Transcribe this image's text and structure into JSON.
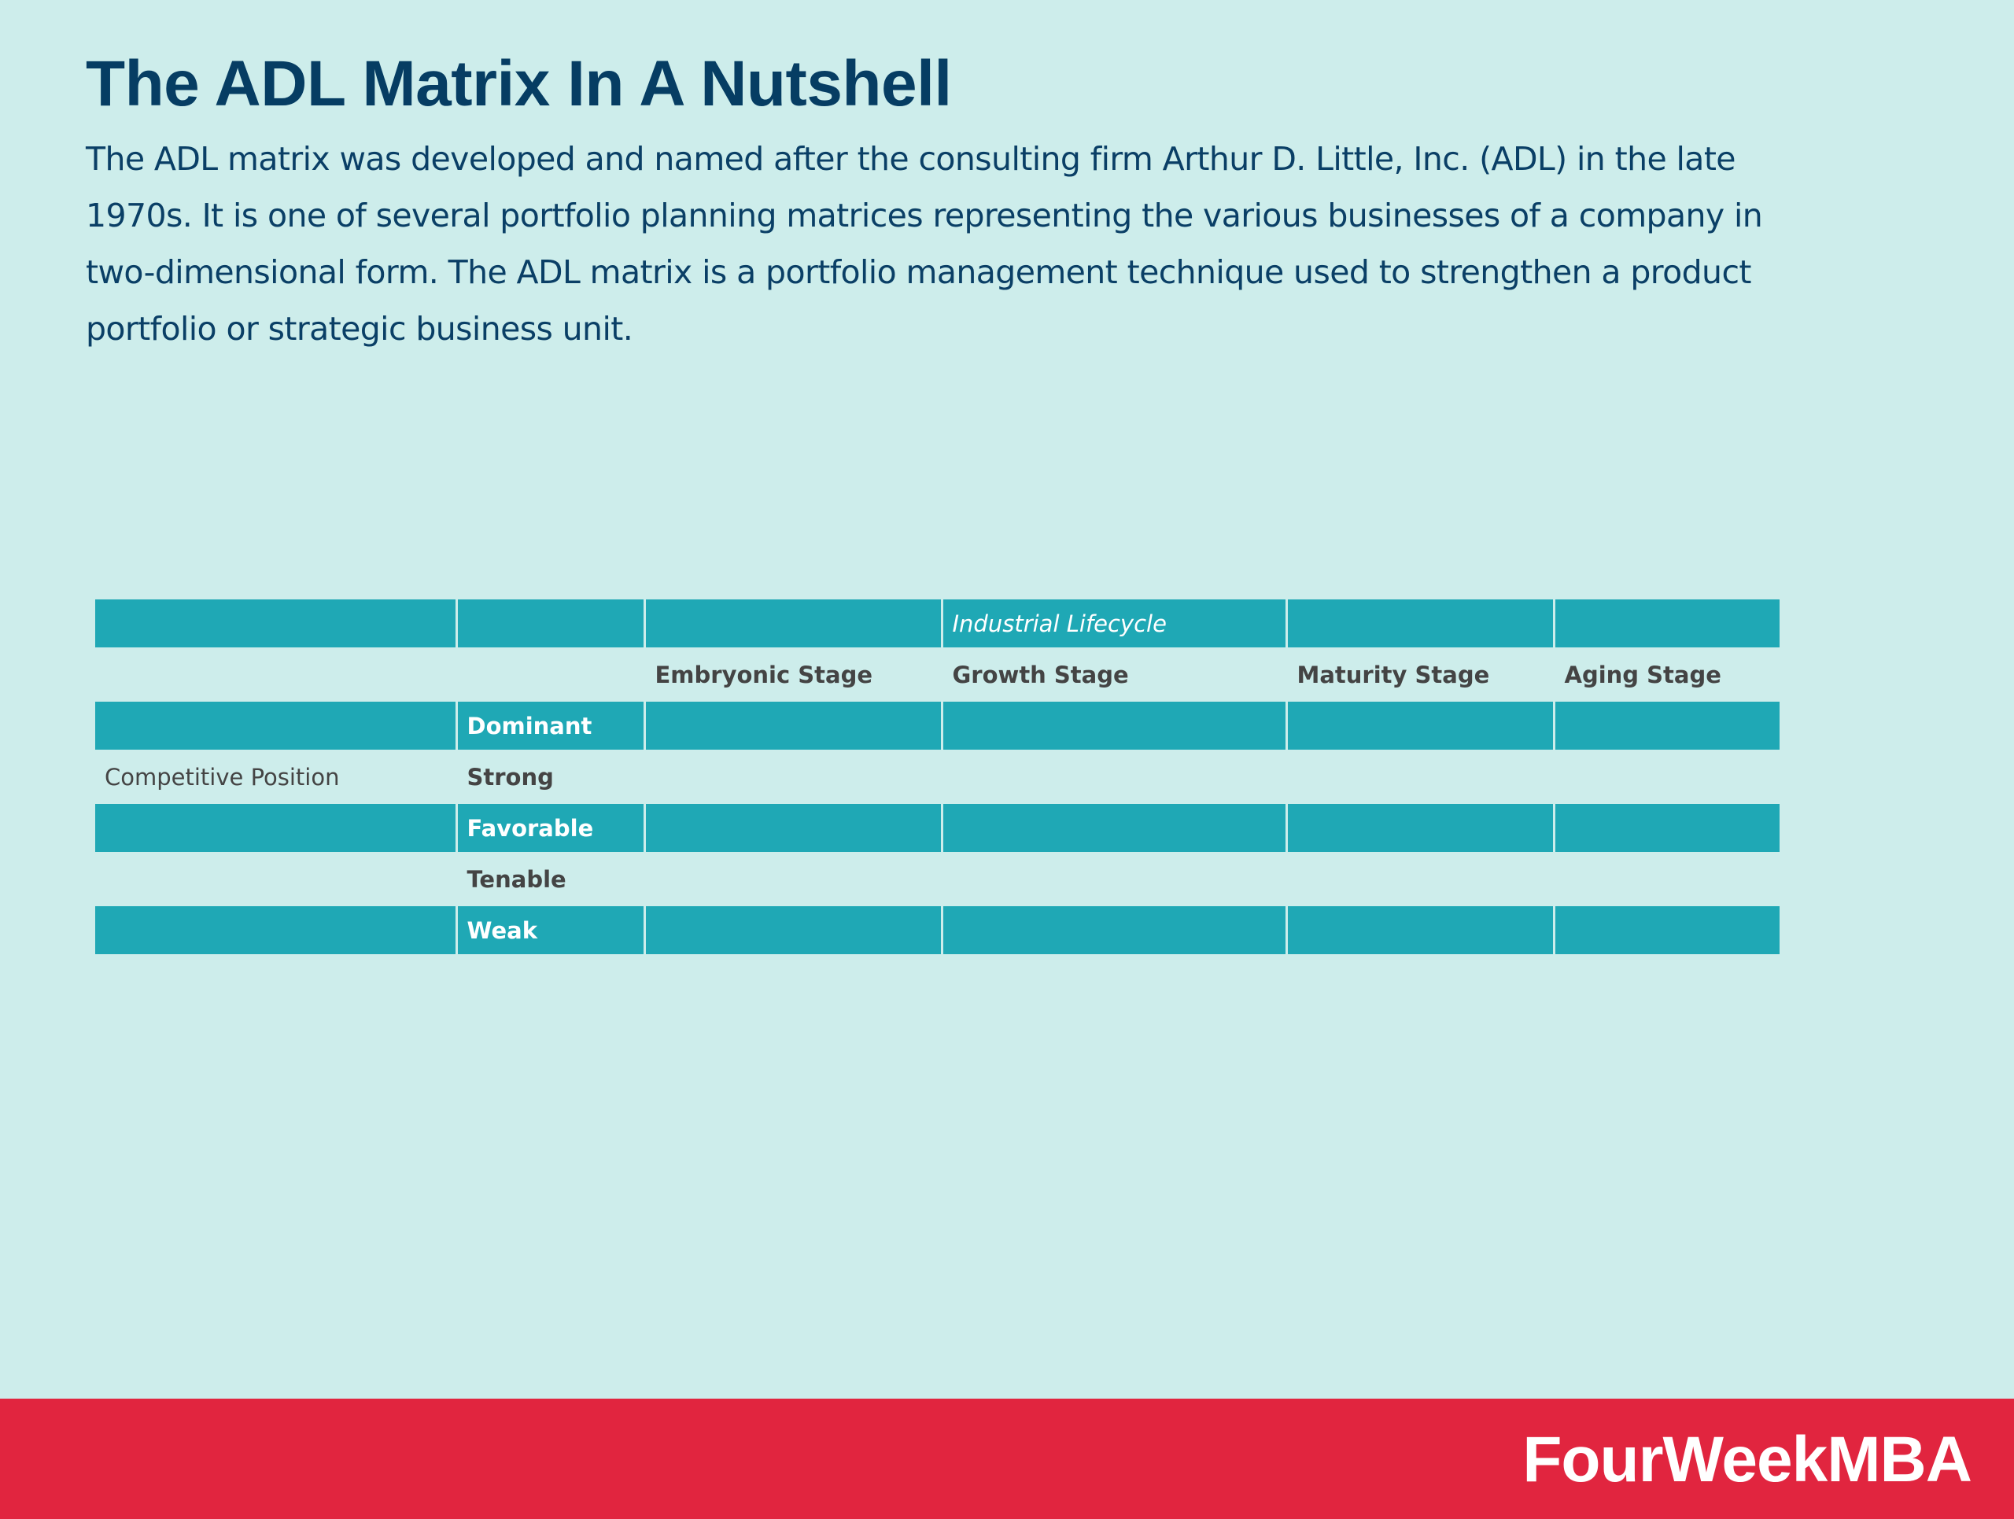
{
  "header": {
    "title": "The ADL Matrix In A Nutshell",
    "description": "The ADL matrix was developed and named after the consulting firm Arthur D. Little, Inc. (ADL) in the late 1970s. It is one of several portfolio planning matrices representing the various businesses of a company in two-dimensional form.  The ADL matrix is a portfolio management technique used to strengthen a product portfolio or strategic business unit."
  },
  "matrix": {
    "lifecycle_label": "Industrial Lifecycle",
    "axis_label": "Competitive Position",
    "stages": [
      "Embryonic Stage",
      "Growth Stage",
      "Maturity Stage",
      "Aging Stage"
    ],
    "positions": [
      "Dominant",
      "Strong",
      "Favorable",
      "Tenable",
      "Weak"
    ]
  },
  "footer": {
    "brand": "FourWeekMBA"
  },
  "colors": {
    "background": "#cdedeb",
    "title": "#063d63",
    "teal_row": "#1fa8b5",
    "footer": "#e1253f"
  }
}
